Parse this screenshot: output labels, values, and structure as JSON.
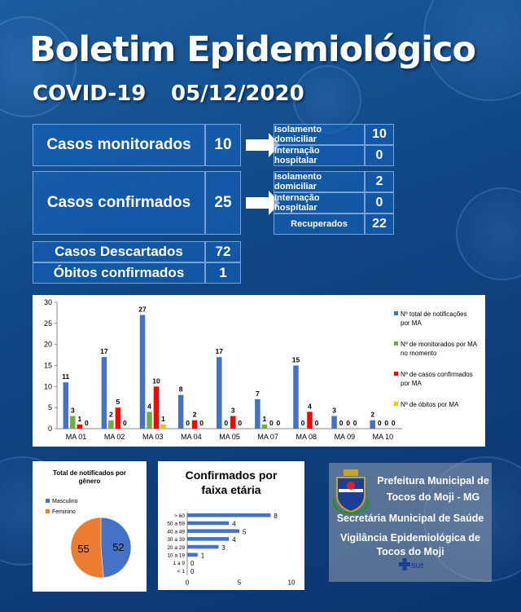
{
  "header": {
    "title": "Boletim Epidemiológico",
    "covid": "COVID-19",
    "date": "05/12/2020"
  },
  "monitorados": {
    "label": "Casos monitorados",
    "value": "10",
    "rows": [
      {
        "label": "Isolamento domiciliar",
        "value": "10"
      },
      {
        "label": "Internação hospitalar",
        "value": "0"
      }
    ]
  },
  "confirmados": {
    "label": "Casos confirmados",
    "value": "25",
    "rows": [
      {
        "label": "Isolamento domiciliar",
        "value": "2"
      },
      {
        "label": "Internação hospitalar",
        "value": "0"
      },
      {
        "label": "Recuperados",
        "value": "22"
      }
    ]
  },
  "descartados": {
    "label": "Casos Descartados",
    "value": "72"
  },
  "obitos": {
    "label": "Óbitos confirmados",
    "value": "1"
  },
  "chart_data": [
    {
      "type": "bar",
      "title": "",
      "categories": [
        "MA 01",
        "MA 02",
        "MA 03",
        "MA 04",
        "MA 05",
        "MA 07",
        "MA 08",
        "MA 09",
        "MA 10"
      ],
      "ylim": [
        0,
        30
      ],
      "yticks": [
        0,
        5,
        10,
        15,
        20,
        25,
        30
      ],
      "grid": false,
      "legend": "right",
      "series": [
        {
          "name": "Nº total de notificações por MA",
          "color": "#4472c4",
          "values": [
            11,
            17,
            27,
            8,
            17,
            7,
            15,
            3,
            2
          ]
        },
        {
          "name": "Nº de monitorados por MA no momento",
          "color": "#70ad47",
          "values": [
            3,
            2,
            4,
            0,
            0,
            1,
            0,
            0,
            0
          ]
        },
        {
          "name": "Nº de casos confirmados por MA",
          "color": "#ff0000",
          "values": [
            1,
            5,
            10,
            2,
            3,
            0,
            4,
            0,
            0
          ]
        },
        {
          "name": "Nº de óbitos por MA",
          "color": "#ffc000",
          "values": [
            0,
            0,
            1,
            0,
            0,
            0,
            0,
            0,
            0
          ]
        }
      ]
    },
    {
      "type": "pie",
      "title": "Total de notificados por gênero",
      "legend": "left",
      "categories": [
        "Masculino",
        "Feminino"
      ],
      "values": [
        52,
        55
      ],
      "colors": [
        "#4472c4",
        "#ed7d31"
      ]
    },
    {
      "type": "bar",
      "orientation": "horizontal",
      "title": "Confirmados por faixa etária",
      "categories": [
        "> 60",
        "50 a 59",
        "40 a 49",
        "30 a 39",
        "20 a 29",
        "10 a 19",
        "1 a 9",
        "< 1"
      ],
      "values": [
        8,
        4,
        5,
        4,
        3,
        1,
        0,
        0
      ],
      "xlim": [
        0,
        10
      ],
      "xticks": [
        0,
        5,
        10
      ],
      "color": "#4472c4"
    }
  ],
  "logo": {
    "line1": "Prefeitura Municipal de",
    "line2": "Tocos do Moji - MG",
    "line3": "Secretária Municipal de Saúde",
    "line4": "Vigilância Epidemiológica de",
    "line5": "Tocos do Moji",
    "sus": "SUS"
  }
}
